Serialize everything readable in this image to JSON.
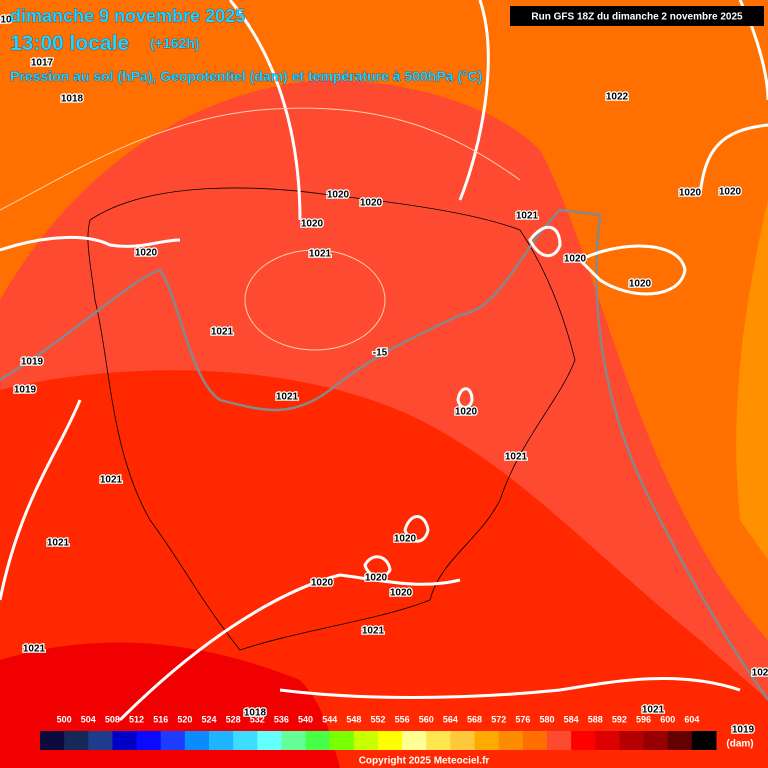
{
  "header": {
    "date": "dimanche 9 novembre 2025",
    "time": "13:00 locale",
    "lead": "(+162h)",
    "subtitle": "Pression au sol (hPa), Geopotentiel (dam) et température à 500hPa (°C)",
    "run": "Run GFS 18Z du dimanche 2 novembre 2025"
  },
  "isobar_labels": [
    "10",
    1017,
    1018,
    1022,
    1020,
    1020,
    1020,
    1021,
    1020,
    1020,
    1020,
    1021,
    1020,
    1020,
    1021,
    -15,
    1019,
    1019,
    1021,
    1020,
    1021,
    1021,
    1020,
    1021,
    1020,
    1020,
    1020,
    1021,
    1021,
    1021,
    1018,
    1019,
    "102"
  ],
  "legend": {
    "values": [
      500,
      504,
      508,
      512,
      516,
      520,
      524,
      528,
      532,
      536,
      540,
      544,
      548,
      552,
      556,
      560,
      564,
      568,
      572,
      576,
      580,
      584,
      588,
      592,
      596,
      600,
      604
    ],
    "colors": [
      "#0a0a3c",
      "#14285a",
      "#1e3c8c",
      "#0000c8",
      "#0a0aff",
      "#1e3cff",
      "#0a8cff",
      "#1eb4ff",
      "#3cdcff",
      "#64ffff",
      "#64ff96",
      "#46ff46",
      "#78ff00",
      "#c8ff00",
      "#ffff00",
      "#ffff96",
      "#ffe650",
      "#ffc83c",
      "#ffaa00",
      "#ff8c00",
      "#ff6e00",
      "#ff4a32",
      "#ff0000",
      "#dc0000",
      "#b40000",
      "#960000",
      "#640000",
      "#000000"
    ],
    "unit": "(dam)"
  },
  "footer": {
    "copyright": "Copyright 2025 Meteociel.fr"
  }
}
